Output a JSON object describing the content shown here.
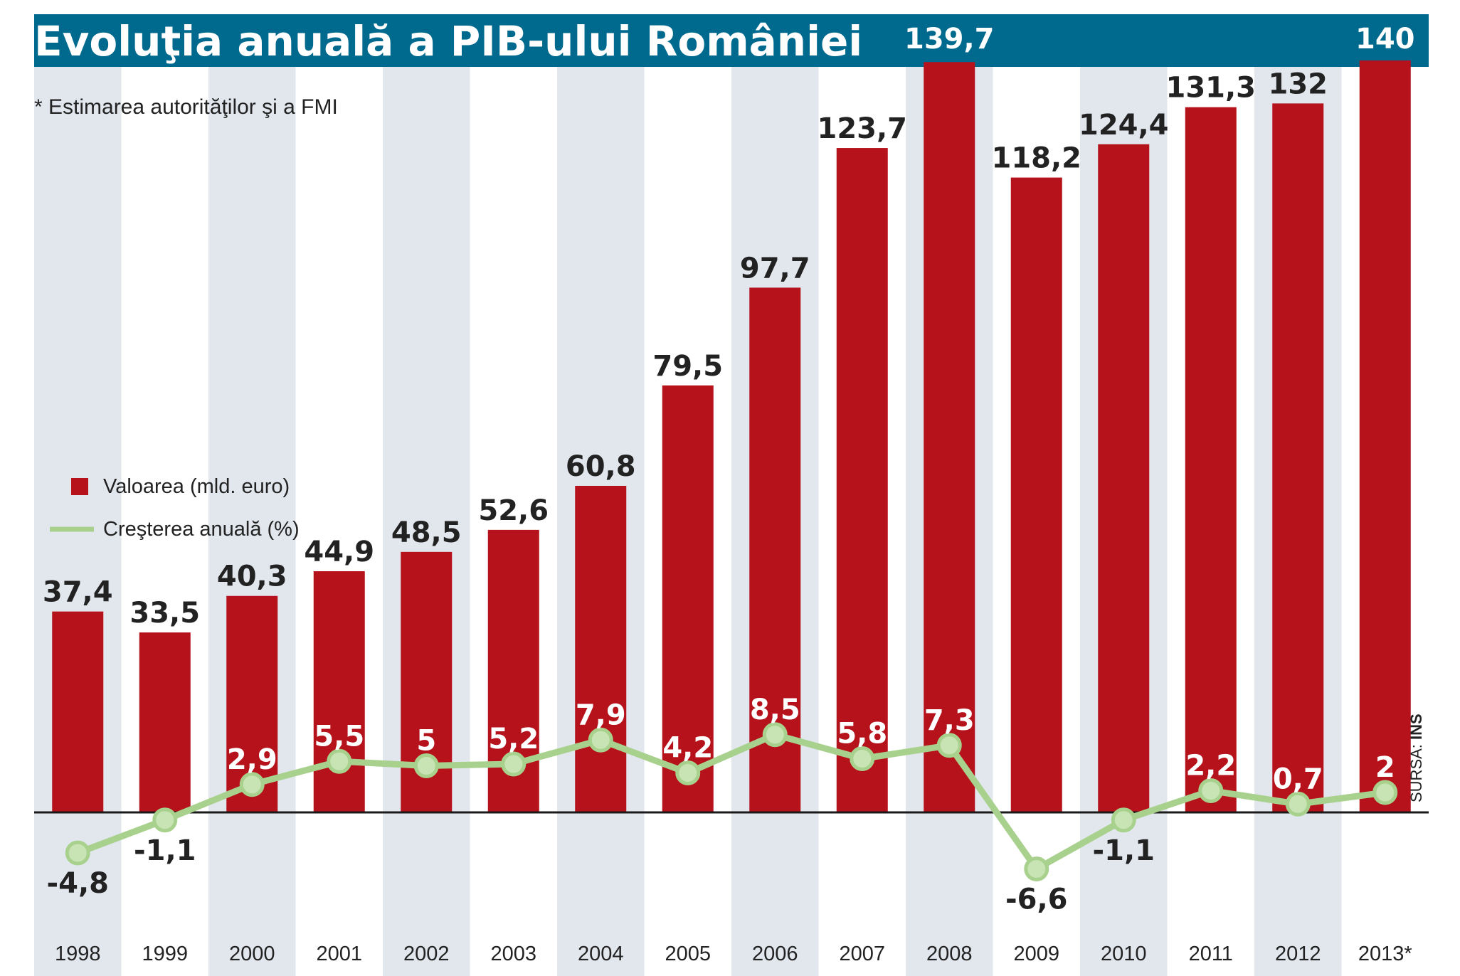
{
  "chart_data": {
    "type": "bar",
    "title": "Evoluţia anuală a PIB-ului României",
    "note": "* Estimarea autorităţilor şi a FMI",
    "source_prefix": "SURSA:",
    "source_name": "INS",
    "categories": [
      "1998",
      "1999",
      "2000",
      "2001",
      "2002",
      "2003",
      "2004",
      "2005",
      "2006",
      "2007",
      "2008",
      "2009",
      "2010",
      "2011",
      "2012",
      "2013*"
    ],
    "series": [
      {
        "name": "Valoarea (mld. euro)",
        "type": "bar",
        "color": "#b5121b",
        "values": [
          37.4,
          33.5,
          40.3,
          44.9,
          48.5,
          52.6,
          60.8,
          79.5,
          97.7,
          123.7,
          139.7,
          118.2,
          124.4,
          131.3,
          132,
          140
        ],
        "labels": [
          "37,4",
          "33,5",
          "40,3",
          "44,9",
          "48,5",
          "52,6",
          "60,8",
          "79,5",
          "97,7",
          "123,7",
          "139,7",
          "118,2",
          "124,4",
          "131,3",
          "132",
          "140"
        ]
      },
      {
        "name": "Creşterea anuală (%)",
        "type": "line",
        "color": "#a9d18e",
        "values": [
          -4.8,
          -1.1,
          2.9,
          5.5,
          5,
          5.2,
          7.9,
          4.2,
          8.5,
          5.8,
          7.3,
          -6.6,
          -1.1,
          2.2,
          0.7,
          2
        ],
        "labels": [
          "-4,8",
          "-1,1",
          "2,9",
          "5,5",
          "5",
          "5,2",
          "7,9",
          "4,2",
          "8,5",
          "5,8",
          "7,3",
          "-6,6",
          "-1,1",
          "2,2",
          "0,7",
          "2"
        ]
      }
    ],
    "colors": {
      "header": "#006a8e",
      "stripe": "#e2e7ee",
      "axis": "#1a1a1a"
    },
    "legend_position": "left-middle"
  }
}
